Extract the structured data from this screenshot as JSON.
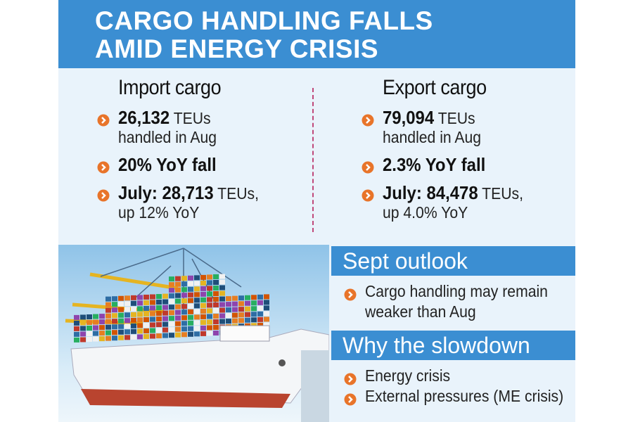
{
  "header": {
    "title_lines": [
      "CARGO HANDLING FALLS",
      "AMID ENERGY CRISIS"
    ]
  },
  "columns": [
    {
      "heading": "Import cargo",
      "items": [
        {
          "lines": [
            {
              "bold": "26,132",
              "normal": "TEUs"
            },
            {
              "normal": "handled in Aug"
            }
          ]
        },
        {
          "lines": [
            {
              "bold": "20% YoY fall"
            }
          ]
        },
        {
          "lines": [
            {
              "bold": "July: 28,713",
              "normal": "TEUs,"
            },
            {
              "normal": "up 12% YoY"
            }
          ]
        }
      ]
    },
    {
      "heading": "Export cargo",
      "items": [
        {
          "lines": [
            {
              "bold": "79,094",
              "normal": "TEUs"
            },
            {
              "normal": "handled in Aug"
            }
          ]
        },
        {
          "lines": [
            {
              "bold": "2.3% YoY fall"
            }
          ]
        },
        {
          "lines": [
            {
              "bold": "July: 84,478",
              "normal": "TEUs,"
            },
            {
              "normal": "up 4.0% YoY"
            }
          ]
        }
      ]
    }
  ],
  "sections": [
    {
      "heading": "Sept outlook",
      "bullets": [
        [
          "Cargo handling may remain",
          "weaker than Aug"
        ]
      ]
    },
    {
      "heading": "Why the slowdown",
      "bullets": [
        [
          "Energy crisis"
        ],
        [
          "External pressures (ME crisis)"
        ]
      ]
    }
  ]
}
